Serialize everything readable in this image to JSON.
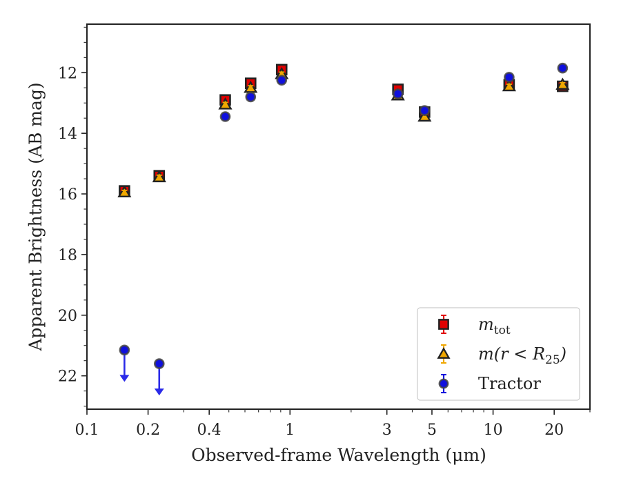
{
  "chart_data": {
    "type": "scatter",
    "xlabel": "Observed-frame Wavelength (μm)",
    "ylabel": "Apparent Brightness (AB mag)",
    "xscale": "log",
    "xlim": [
      0.1,
      30
    ],
    "ylim": [
      23.1,
      10.4
    ],
    "y_inverted": true,
    "xticks": [
      0.1,
      0.2,
      0.4,
      1,
      3,
      5,
      10,
      20
    ],
    "xtick_labels": [
      "0.1",
      "0.2",
      "0.4",
      "1",
      "3",
      "5",
      "10",
      "20"
    ],
    "yticks": [
      12,
      14,
      16,
      18,
      20,
      22
    ],
    "ytick_labels": [
      "12",
      "14",
      "16",
      "18",
      "20",
      "22"
    ],
    "grid": false,
    "legend_position": "lower right",
    "series": [
      {
        "name": "m_tot",
        "label_base": "m",
        "label_sub": "tot",
        "marker": "square",
        "color": "#e00000",
        "edge": "#222222",
        "points": [
          {
            "x": 0.153,
            "y": 15.9
          },
          {
            "x": 0.227,
            "y": 15.4
          },
          {
            "x": 0.48,
            "y": 12.9
          },
          {
            "x": 0.64,
            "y": 12.35
          },
          {
            "x": 0.91,
            "y": 11.9
          },
          {
            "x": 3.4,
            "y": 12.55
          },
          {
            "x": 4.6,
            "y": 13.3
          },
          {
            "x": 12.0,
            "y": 12.4
          },
          {
            "x": 22.0,
            "y": 12.45
          }
        ]
      },
      {
        "name": "m(r < R_25)",
        "label_base": "m(r < R",
        "label_sub": "25",
        "label_tail": ")",
        "marker": "triangle",
        "color": "#f0a800",
        "edge": "#222222",
        "points": [
          {
            "x": 0.153,
            "y": 15.95
          },
          {
            "x": 0.227,
            "y": 15.45
          },
          {
            "x": 0.48,
            "y": 13.05
          },
          {
            "x": 0.64,
            "y": 12.5
          },
          {
            "x": 0.91,
            "y": 12.05
          },
          {
            "x": 3.4,
            "y": 12.75
          },
          {
            "x": 4.6,
            "y": 13.45
          },
          {
            "x": 12.0,
            "y": 12.45
          },
          {
            "x": 22.0,
            "y": 12.4
          }
        ]
      },
      {
        "name": "Tractor",
        "marker": "circle",
        "color": "#1010dd",
        "edge": "#444444",
        "points": [
          {
            "x": 0.48,
            "y": 13.45
          },
          {
            "x": 0.64,
            "y": 12.8
          },
          {
            "x": 0.91,
            "y": 12.25
          },
          {
            "x": 3.4,
            "y": 12.7
          },
          {
            "x": 4.6,
            "y": 13.25
          },
          {
            "x": 12.0,
            "y": 12.15
          },
          {
            "x": 22.0,
            "y": 11.85
          }
        ],
        "upper_limits": [
          {
            "x": 0.153,
            "y": 21.15
          },
          {
            "x": 0.227,
            "y": 21.6
          }
        ]
      }
    ]
  }
}
